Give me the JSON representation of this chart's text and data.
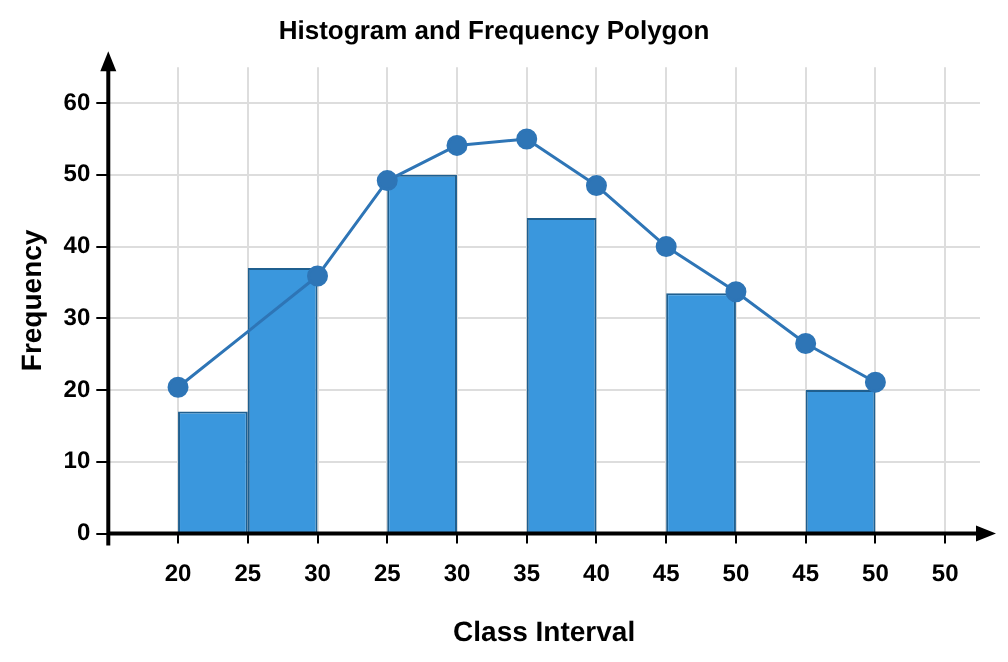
{
  "chart_data": {
    "type": "bar",
    "title": "Histogram and Frequency Polygon",
    "xlabel": "Class Interval",
    "ylabel": "Frequency",
    "categories": [
      null,
      null,
      "20",
      null,
      "25",
      null,
      "30",
      null,
      "25",
      null,
      "30",
      null,
      "35",
      null,
      "40",
      null,
      "45",
      null,
      "50",
      null,
      "45",
      null,
      "50",
      null,
      "50",
      null
    ],
    "series": [
      {
        "color": "#3a97dd",
        "values": [
          null,
          null,
          null,
          17,
          null,
          37,
          null,
          null,
          null,
          50,
          null,
          null,
          null,
          44,
          null,
          null,
          null,
          33.5,
          null,
          null,
          null,
          20,
          null,
          null,
          null,
          null
        ]
      },
      {
        "type": "line",
        "color": "#2e75b6",
        "marker": "circle",
        "values": [
          null,
          null,
          20.4,
          null,
          null,
          null,
          35.9,
          null,
          49.2,
          null,
          54.1,
          null,
          55,
          null,
          48.5,
          null,
          40,
          null,
          33.7,
          null,
          26.5,
          null,
          21.1,
          null,
          null,
          null
        ]
      }
    ],
    "ylim": [
      0,
      65
    ],
    "yticks": [
      0,
      10,
      20,
      30,
      40,
      50,
      60
    ],
    "grid": true
  }
}
